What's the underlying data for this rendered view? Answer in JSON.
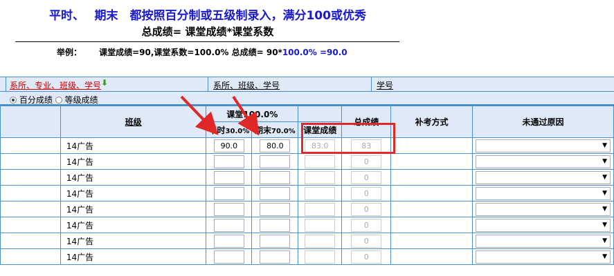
{
  "header": {
    "line1": "平时、　 期末　都按照百分制或五级制录入，满分100或优秀",
    "formula": "总成绩= 课堂成绩*课堂系数",
    "example_label": "举例：",
    "example_text": "课堂成绩=90,课堂系数=100.0%  总成绩= 90*",
    "example_blue": "100.0% =90.0"
  },
  "sort": {
    "options": [
      "系所、专业、班级、学号",
      "系所、班级、学号",
      "学号"
    ],
    "active_color": "#cc0000"
  },
  "grade_mode": {
    "options": [
      "百分成绩",
      "等级成绩"
    ],
    "selected": "百分成绩"
  },
  "columns": {
    "class": "班级",
    "classroom": "课堂100.0%",
    "usual": "平时",
    "usual_pct": "30.0%",
    "final": "期末",
    "final_pct": "70.0%",
    "class_score": "课堂成绩",
    "total": "总成绩",
    "makeup": "补考方式",
    "reason": "未通过原因"
  },
  "rows": [
    {
      "class": "14广告",
      "usual": "90.0",
      "final": "80.0",
      "class_score": "83.0",
      "total": "83"
    },
    {
      "class": "14广告",
      "usual": "",
      "final": "",
      "class_score": "",
      "total": "0"
    },
    {
      "class": "14广告",
      "usual": "",
      "final": "",
      "class_score": "",
      "total": "0"
    },
    {
      "class": "14广告",
      "usual": "",
      "final": "",
      "class_score": "",
      "total": "0"
    },
    {
      "class": "14广告",
      "usual": "",
      "final": "",
      "class_score": "",
      "total": "0"
    },
    {
      "class": "14广告",
      "usual": "",
      "final": "",
      "class_score": "",
      "total": "0"
    },
    {
      "class": "14广告",
      "usual": "",
      "final": "",
      "class_score": "",
      "total": "0"
    },
    {
      "class": "14广告",
      "usual": "",
      "final": "",
      "class_score": "",
      "total": "0"
    }
  ]
}
